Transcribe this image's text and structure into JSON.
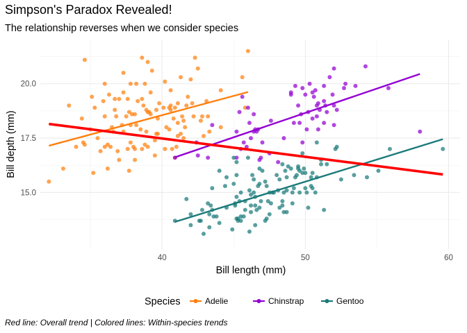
{
  "chart_data": {
    "type": "scatter",
    "title": "Simpson's Paradox Revealed!",
    "subtitle": "The relationship reverses when we consider species",
    "xlabel": "Bill length (mm)",
    "ylabel": "Bill depth (mm)",
    "xlim": [
      31.5,
      60.8
    ],
    "ylim": [
      12.4,
      22.0
    ],
    "x_ticks": [
      40,
      50,
      60
    ],
    "y_ticks": [
      15.0,
      17.5,
      20.0
    ],
    "x_tick_labels": [
      "40",
      "50",
      "60"
    ],
    "y_tick_labels": [
      "15.0",
      "17.5",
      "20.0"
    ],
    "grid": true,
    "legend": {
      "title": "Species",
      "position": "bottom"
    },
    "caption": "Red line: Overall trend | Colored lines: Within-species trends",
    "overall_trend": {
      "color": "#ff0000",
      "x": [
        32.1,
        59.6
      ],
      "y": [
        18.15,
        15.83
      ]
    },
    "series": [
      {
        "name": "Adelie",
        "color": "#ff7f0e",
        "trend": {
          "x": [
            32.1,
            46.0
          ],
          "y": [
            17.15,
            19.62
          ]
        },
        "points": [
          [
            32.1,
            15.5
          ],
          [
            33.1,
            16.1
          ],
          [
            33.5,
            19.0
          ],
          [
            34.0,
            17.1
          ],
          [
            34.4,
            18.4
          ],
          [
            34.5,
            17.3
          ],
          [
            34.6,
            21.1
          ],
          [
            34.6,
            17.2
          ],
          [
            35.0,
            17.9
          ],
          [
            35.1,
            19.4
          ],
          [
            35.2,
            15.9
          ],
          [
            35.3,
            18.9
          ],
          [
            35.5,
            17.5
          ],
          [
            35.7,
            16.9
          ],
          [
            35.9,
            19.2
          ],
          [
            36.0,
            18.5
          ],
          [
            36.0,
            17.1
          ],
          [
            36.2,
            17.2
          ],
          [
            36.2,
            16.1
          ],
          [
            36.3,
            19.5
          ],
          [
            36.4,
            17.1
          ],
          [
            36.5,
            18.0
          ],
          [
            36.6,
            17.8
          ],
          [
            36.7,
            18.8
          ],
          [
            36.7,
            19.3
          ],
          [
            36.8,
            18.5
          ],
          [
            36.9,
            16.9
          ],
          [
            37.0,
            16.5
          ],
          [
            37.0,
            19.3
          ],
          [
            37.2,
            18.1
          ],
          [
            37.3,
            17.8
          ],
          [
            37.3,
            20.5
          ],
          [
            37.5,
            18.5
          ],
          [
            37.6,
            17.0
          ],
          [
            37.6,
            19.3
          ],
          [
            37.7,
            18.7
          ],
          [
            37.7,
            16.0
          ],
          [
            37.8,
            18.1
          ],
          [
            37.8,
            17.3
          ],
          [
            37.8,
            20.0
          ],
          [
            37.9,
            18.6
          ],
          [
            38.0,
            17.1
          ],
          [
            38.1,
            18.6
          ],
          [
            38.1,
            17.0
          ],
          [
            38.1,
            16.5
          ],
          [
            38.2,
            18.1
          ],
          [
            38.2,
            20.0
          ],
          [
            38.3,
            19.2
          ],
          [
            38.5,
            17.9
          ],
          [
            38.6,
            21.2
          ],
          [
            38.6,
            17.0
          ],
          [
            38.7,
            19.0
          ],
          [
            38.8,
            17.2
          ],
          [
            38.8,
            20.0
          ],
          [
            38.9,
            17.8
          ],
          [
            38.9,
            18.8
          ],
          [
            39.0,
            17.1
          ],
          [
            39.0,
            18.7
          ],
          [
            39.1,
            18.7
          ],
          [
            39.2,
            19.6
          ],
          [
            39.2,
            18.6
          ],
          [
            39.3,
            20.6
          ],
          [
            39.5,
            17.4
          ],
          [
            39.5,
            16.7
          ],
          [
            39.6,
            18.8
          ],
          [
            39.6,
            17.7
          ],
          [
            39.7,
            18.4
          ],
          [
            39.7,
            17.7
          ],
          [
            39.8,
            19.1
          ],
          [
            40.1,
            18.9
          ],
          [
            40.2,
            17.0
          ],
          [
            40.2,
            20.1
          ],
          [
            40.3,
            18.0
          ],
          [
            40.5,
            18.9
          ],
          [
            40.5,
            17.9
          ],
          [
            40.6,
            18.8
          ],
          [
            40.6,
            19.0
          ],
          [
            40.7,
            17.0
          ],
          [
            40.8,
            18.4
          ],
          [
            40.9,
            16.6
          ],
          [
            40.9,
            18.9
          ],
          [
            41.0,
            17.1
          ],
          [
            41.1,
            17.6
          ],
          [
            41.1,
            18.2
          ],
          [
            41.1,
            19.1
          ],
          [
            41.3,
            20.3
          ],
          [
            41.3,
            17.7
          ],
          [
            41.4,
            18.5
          ],
          [
            41.5,
            17.5
          ],
          [
            41.5,
            18.3
          ],
          [
            41.6,
            18.0
          ],
          [
            41.7,
            19.0
          ],
          [
            41.8,
            19.4
          ],
          [
            42.0,
            20.2
          ],
          [
            42.1,
            19.1
          ],
          [
            42.2,
            18.5
          ],
          [
            42.3,
            21.2
          ],
          [
            42.5,
            20.7
          ],
          [
            42.7,
            18.3
          ],
          [
            42.8,
            18.5
          ],
          [
            42.9,
            17.6
          ],
          [
            43.1,
            19.2
          ],
          [
            43.2,
            18.5
          ],
          [
            43.3,
            17.8
          ],
          [
            44.1,
            19.7
          ],
          [
            44.1,
            18.0
          ],
          [
            45.6,
            20.3
          ],
          [
            45.8,
            18.9
          ],
          [
            46.0,
            21.5
          ],
          [
            39.0,
            21.0
          ],
          [
            36.0,
            20.0
          ],
          [
            37.3,
            19.6
          ],
          [
            40.6,
            19.7
          ],
          [
            38.6,
            19.3
          ]
        ]
      },
      {
        "name": "Chinstrap",
        "color": "#9400d3",
        "trend": {
          "x": [
            40.9,
            58.0
          ],
          "y": [
            16.62,
            20.45
          ]
        },
        "points": [
          [
            40.9,
            16.6
          ],
          [
            42.4,
            17.3
          ],
          [
            42.5,
            16.7
          ],
          [
            43.2,
            16.6
          ],
          [
            43.5,
            18.1
          ],
          [
            45.2,
            17.8
          ],
          [
            45.2,
            16.6
          ],
          [
            45.4,
            18.7
          ],
          [
            45.5,
            17.0
          ],
          [
            45.6,
            19.4
          ],
          [
            45.7,
            17.3
          ],
          [
            45.9,
            17.1
          ],
          [
            46.0,
            18.9
          ],
          [
            46.1,
            18.2
          ],
          [
            46.2,
            17.5
          ],
          [
            46.4,
            18.6
          ],
          [
            46.4,
            17.8
          ],
          [
            46.5,
            17.9
          ],
          [
            46.6,
            17.8
          ],
          [
            46.7,
            17.9
          ],
          [
            46.8,
            16.5
          ],
          [
            46.9,
            16.6
          ],
          [
            47.0,
            17.3
          ],
          [
            47.5,
            16.8
          ],
          [
            47.6,
            18.3
          ],
          [
            48.1,
            16.4
          ],
          [
            49.0,
            19.5
          ],
          [
            49.0,
            19.6
          ],
          [
            49.3,
            19.9
          ],
          [
            49.5,
            19.0
          ],
          [
            49.6,
            18.2
          ],
          [
            49.7,
            18.6
          ],
          [
            49.8,
            17.3
          ],
          [
            50.0,
            19.5
          ],
          [
            50.1,
            17.9
          ],
          [
            50.2,
            18.7
          ],
          [
            50.3,
            20.0
          ],
          [
            50.5,
            18.4
          ],
          [
            50.5,
            19.6
          ],
          [
            50.6,
            19.4
          ],
          [
            50.7,
            19.7
          ],
          [
            50.8,
            18.5
          ],
          [
            50.8,
            19.0
          ],
          [
            50.9,
            17.9
          ],
          [
            50.9,
            19.1
          ],
          [
            51.0,
            18.8
          ],
          [
            51.3,
            18.2
          ],
          [
            51.3,
            19.2
          ],
          [
            51.3,
            19.9
          ],
          [
            51.4,
            19.0
          ],
          [
            51.5,
            18.7
          ],
          [
            51.7,
            20.3
          ],
          [
            51.9,
            19.5
          ],
          [
            52.0,
            18.1
          ],
          [
            52.0,
            19.0
          ],
          [
            52.0,
            20.7
          ],
          [
            52.2,
            18.8
          ],
          [
            52.7,
            19.8
          ],
          [
            52.8,
            20.0
          ],
          [
            53.5,
            19.9
          ],
          [
            54.2,
            20.8
          ],
          [
            55.8,
            19.8
          ],
          [
            58.0,
            17.8
          ],
          [
            49.2,
            18.2
          ],
          [
            48.5,
            17.5
          ],
          [
            49.8,
            19.8
          ]
        ]
      },
      {
        "name": "Gentoo",
        "color": "#1b7a7a",
        "trend": {
          "x": [
            40.9,
            59.6
          ],
          "y": [
            13.65,
            17.45
          ]
        },
        "points": [
          [
            40.9,
            13.7
          ],
          [
            41.7,
            14.7
          ],
          [
            42.0,
            13.5
          ],
          [
            42.6,
            13.7
          ],
          [
            42.7,
            13.7
          ],
          [
            42.8,
            14.2
          ],
          [
            42.9,
            13.1
          ],
          [
            43.2,
            14.5
          ],
          [
            43.3,
            14.0
          ],
          [
            43.3,
            13.4
          ],
          [
            43.4,
            14.4
          ],
          [
            43.5,
            14.2
          ],
          [
            43.5,
            15.2
          ],
          [
            43.6,
            13.9
          ],
          [
            43.8,
            13.9
          ],
          [
            44.0,
            13.6
          ],
          [
            44.4,
            15.3
          ],
          [
            44.5,
            14.3
          ],
          [
            44.5,
            15.7
          ],
          [
            44.9,
            13.3
          ],
          [
            45.0,
            15.4
          ],
          [
            45.1,
            14.5
          ],
          [
            45.1,
            14.4
          ],
          [
            45.2,
            13.8
          ],
          [
            45.2,
            14.8
          ],
          [
            45.2,
            15.8
          ],
          [
            45.2,
            16.4
          ],
          [
            45.3,
            13.8
          ],
          [
            45.3,
            13.7
          ],
          [
            45.4,
            14.6
          ],
          [
            45.5,
            13.7
          ],
          [
            45.5,
            13.9
          ],
          [
            45.5,
            15.0
          ],
          [
            45.7,
            13.9
          ],
          [
            45.8,
            14.6
          ],
          [
            45.8,
            14.2
          ],
          [
            46.1,
            13.2
          ],
          [
            46.1,
            15.1
          ],
          [
            46.2,
            14.1
          ],
          [
            46.2,
            14.4
          ],
          [
            46.2,
            14.9
          ],
          [
            46.3,
            15.8
          ],
          [
            46.4,
            15.0
          ],
          [
            46.4,
            15.6
          ],
          [
            46.5,
            13.5
          ],
          [
            46.5,
            14.4
          ],
          [
            46.5,
            14.8
          ],
          [
            46.6,
            14.2
          ],
          [
            46.7,
            15.3
          ],
          [
            46.8,
            14.3
          ],
          [
            46.8,
            15.4
          ],
          [
            46.8,
            16.1
          ],
          [
            46.9,
            14.6
          ],
          [
            47.2,
            13.7
          ],
          [
            47.2,
            15.5
          ],
          [
            47.3,
            13.8
          ],
          [
            47.3,
            15.3
          ],
          [
            47.4,
            14.6
          ],
          [
            47.5,
            14.0
          ],
          [
            47.5,
            15.0
          ],
          [
            47.6,
            14.5
          ],
          [
            47.7,
            15.0
          ],
          [
            47.8,
            15.0
          ],
          [
            48.1,
            15.1
          ],
          [
            48.2,
            14.3
          ],
          [
            48.2,
            15.6
          ],
          [
            48.4,
            14.4
          ],
          [
            48.4,
            14.6
          ],
          [
            48.4,
            16.3
          ],
          [
            48.5,
            14.1
          ],
          [
            48.5,
            15.0
          ],
          [
            48.6,
            16.0
          ],
          [
            48.7,
            14.1
          ],
          [
            48.7,
            15.1
          ],
          [
            48.7,
            15.7
          ],
          [
            48.8,
            16.2
          ],
          [
            49.0,
            16.1
          ],
          [
            49.1,
            14.5
          ],
          [
            49.1,
            15.0
          ],
          [
            49.2,
            15.2
          ],
          [
            49.3,
            15.7
          ],
          [
            49.4,
            15.8
          ],
          [
            49.5,
            16.1
          ],
          [
            49.5,
            16.2
          ],
          [
            49.6,
            15.0
          ],
          [
            49.6,
            16.0
          ],
          [
            49.8,
            15.9
          ],
          [
            49.8,
            16.8
          ],
          [
            49.9,
            16.1
          ],
          [
            50.0,
            15.2
          ],
          [
            50.0,
            15.9
          ],
          [
            50.1,
            15.0
          ],
          [
            50.2,
            14.3
          ],
          [
            50.4,
            15.3
          ],
          [
            50.4,
            15.7
          ],
          [
            50.5,
            15.2
          ],
          [
            50.5,
            15.9
          ],
          [
            50.7,
            15.0
          ],
          [
            50.8,
            15.7
          ],
          [
            50.8,
            17.3
          ],
          [
            51.1,
            16.3
          ],
          [
            51.1,
            16.5
          ],
          [
            51.3,
            14.2
          ],
          [
            51.5,
            16.3
          ],
          [
            52.1,
            17.0
          ],
          [
            52.2,
            17.1
          ],
          [
            52.5,
            15.6
          ],
          [
            53.4,
            15.8
          ],
          [
            54.3,
            15.7
          ],
          [
            55.1,
            16.0
          ],
          [
            55.9,
            17.0
          ],
          [
            59.6,
            17.0
          ],
          [
            45.0,
            16.6
          ],
          [
            47.0,
            16.0
          ],
          [
            48.0,
            15.8
          ],
          [
            46.0,
            16.6
          ],
          [
            44.0,
            16.0
          ],
          [
            42.0,
            14.0
          ]
        ]
      }
    ]
  }
}
